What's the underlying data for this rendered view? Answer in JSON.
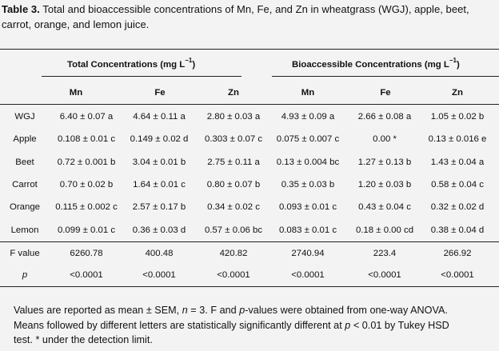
{
  "caption": {
    "label": "Table 3.",
    "text": " Total and bioaccessible concentrations of Mn, Fe, and Zn in wheatgrass (WGJ), apple, beet, carrot, orange, and lemon juice."
  },
  "header": {
    "group_total_prefix": "Total Concentrations (mg L",
    "group_total_sup": "−1",
    "group_total_suffix": ")",
    "group_bio_prefix": "Bioaccessible Concentrations (mg L",
    "group_bio_sup": "−1",
    "group_bio_suffix": ")",
    "columns": [
      "Mn",
      "Fe",
      "Zn",
      "Mn",
      "Fe",
      "Zn"
    ]
  },
  "rows": [
    {
      "label": "WGJ",
      "cells": [
        "6.40 ± 0.07 a",
        "4.64 ± 0.11 a",
        "2.80 ± 0.03 a",
        "4.93 ± 0.09 a",
        "2.66 ± 0.08 a",
        "1.05 ± 0.02 b"
      ]
    },
    {
      "label": "Apple",
      "cells": [
        "0.108 ± 0.01 c",
        "0.149 ± 0.02 d",
        "0.303 ± 0.07 c",
        "0.075 ± 0.007 c",
        "0.00 *",
        "0.13 ± 0.016 e"
      ]
    },
    {
      "label": "Beet",
      "cells": [
        "0.72 ± 0.001 b",
        "3.04 ± 0.01 b",
        "2.75 ± 0.11 a",
        "0.13 ± 0.004 bc",
        "1.27 ± 0.13 b",
        "1.43 ± 0.04 a"
      ]
    },
    {
      "label": "Carrot",
      "cells": [
        "0.70 ± 0.02 b",
        "1.64 ± 0.01 c",
        "0.80 ± 0.07 b",
        "0.35 ± 0.03 b",
        "1.20 ± 0.03 b",
        "0.58 ± 0.04 c"
      ]
    },
    {
      "label": "Orange",
      "cells": [
        "0.115 ± 0.002 c",
        "2.57 ± 0.17 b",
        "0.34 ± 0.02 c",
        "0.093 ± 0.01 c",
        "0.43 ± 0.04 c",
        "0.32 ± 0.02 d"
      ]
    },
    {
      "label": "Lemon",
      "cells": [
        "0.099 ± 0.01 c",
        "0.36 ± 0.03 d",
        "0.57 ± 0.06 bc",
        "0.083 ± 0.01 c",
        "0.18 ± 0.00 cd",
        "0.38 ± 0.04 d"
      ]
    }
  ],
  "stats": [
    {
      "label": "F value",
      "cells": [
        "6260.78",
        "400.48",
        "420.82",
        "2740.94",
        "223.4",
        "266.92"
      ]
    },
    {
      "label": "p",
      "cells": [
        "<0.0001",
        "<0.0001",
        "<0.0001",
        "<0.0001",
        "<0.0001",
        "<0.0001"
      ]
    }
  ],
  "footer": {
    "line1_a": "Values are reported as mean ± SEM, ",
    "line1_n": "n",
    "line1_b": " = 3. F and ",
    "line1_p": "p",
    "line1_c": "-values were obtained from one-way ANOVA.",
    "line2_a": "Means followed by different letters are statistically significantly different at ",
    "line2_p": "p",
    "line2_b": " < 0.01 by Tukey HSD",
    "line3": "test. * under the detection limit."
  }
}
